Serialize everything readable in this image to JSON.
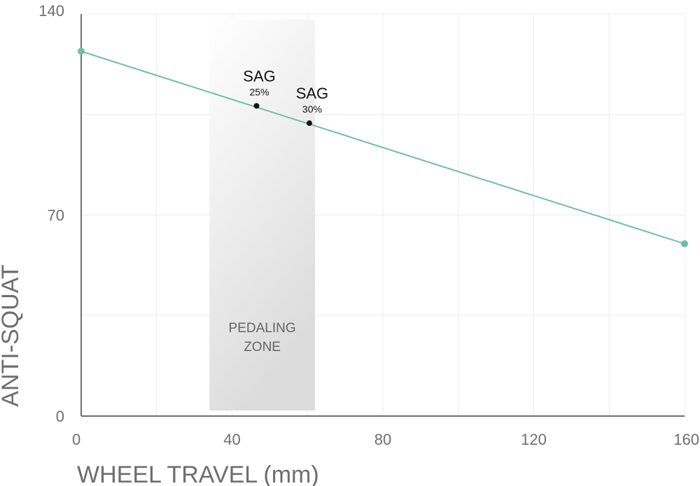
{
  "chart_data": {
    "type": "line",
    "xlabel": "WHEEL TRAVEL (mm)",
    "ylabel": "ANTI-SQUAT",
    "xlim": [
      0,
      160
    ],
    "ylim": [
      0,
      140
    ],
    "x_ticks": [
      "0",
      "40",
      "80",
      "120",
      "160"
    ],
    "y_ticks": [
      "0",
      "70",
      "140"
    ],
    "grid": true,
    "series": [
      {
        "x": [
          0,
          160
        ],
        "y": [
          127,
          60
        ]
      }
    ],
    "shaded_region": {
      "x_range": [
        34,
        62
      ],
      "label": [
        "PEDALING",
        "ZONE"
      ]
    },
    "annotations": [
      {
        "label": "SAG",
        "sublabel": "25%",
        "x": 46.5,
        "y": 108
      },
      {
        "label": "SAG",
        "sublabel": "30%",
        "x": 60.5,
        "y": 102
      }
    ],
    "colors": {
      "line": "#6dbfa8",
      "marker": "#111111",
      "grid": "#ececec",
      "axis": "#6e6e6e"
    }
  }
}
